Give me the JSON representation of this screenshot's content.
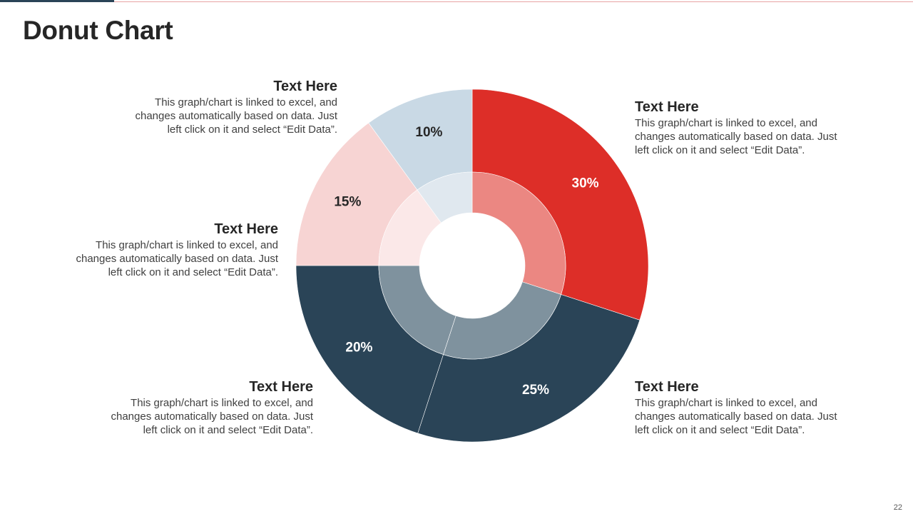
{
  "slide": {
    "title": "Donut Chart",
    "page_number": "22"
  },
  "colors": {
    "header_dark": "#2A4457",
    "header_light": "#E8A3A3",
    "red": "#DD2E28",
    "red_inner": "#EB8782",
    "navy": "#2A4457",
    "navy_inner": "#7F929E",
    "pink": "#F7D4D3",
    "pink_inner": "#FBE8E8",
    "lightblue": "#C9D9E5",
    "lightblue_inner": "#E0E8EF"
  },
  "chart_data": {
    "type": "donut",
    "title": "",
    "categories": [
      "Text Here",
      "Text Here",
      "Text Here",
      "Text Here",
      "Text Here"
    ],
    "values": [
      30,
      25,
      20,
      15,
      10
    ],
    "labels": [
      "30%",
      "25%",
      "20%",
      "15%",
      "10%"
    ],
    "units": "%",
    "rings": 2
  },
  "callouts": [
    {
      "heading": "Text Here",
      "body_lines": [
        "This graph/chart is linked to excel, and",
        "changes automatically based on data. Just",
        "left click on it and select “Edit Data”."
      ]
    },
    {
      "heading": "Text Here",
      "body_lines": [
        "This graph/chart is linked to excel, and",
        "changes automatically based on data. Just",
        "left click on it and select “Edit Data”."
      ]
    },
    {
      "heading": "Text Here",
      "body_lines": [
        "This graph/chart is linked to excel, and",
        "changes automatically based on data. Just",
        "left click on it and select “Edit Data”."
      ]
    },
    {
      "heading": "Text Here",
      "body_lines": [
        "This graph/chart is linked to excel, and",
        "changes automatically based on data. Just",
        "left click on it and select “Edit Data”."
      ]
    },
    {
      "heading": "Text Here",
      "body_lines": [
        "This graph/chart is linked to excel, and",
        "changes automatically based on data. Just",
        "left click on it and select “Edit Data”."
      ]
    }
  ]
}
